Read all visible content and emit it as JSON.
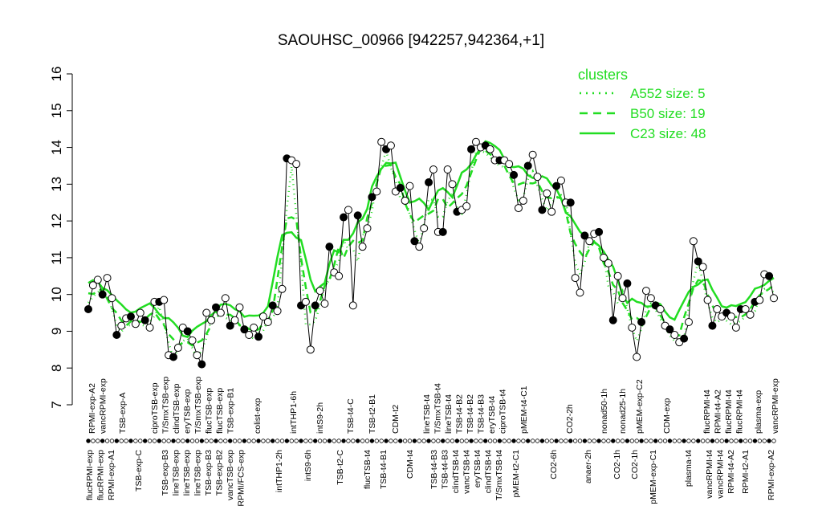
{
  "chart_data": {
    "type": "line",
    "title": "SAOUHSC_00966 [942257,942364,+1]",
    "xlabel": "",
    "ylabel": "",
    "ylim": [
      7,
      16
    ],
    "yticks": [
      7,
      8,
      9,
      10,
      11,
      12,
      13,
      14,
      15,
      16
    ],
    "grid": false,
    "legend": {
      "title": "clusters",
      "placement": "top-right",
      "entries": [
        {
          "label": "A552 size: 5",
          "style": "dotted"
        },
        {
          "label": "B50 size: 19",
          "style": "dashed"
        },
        {
          "label": "C23 size: 48",
          "style": "solid"
        }
      ]
    },
    "colors": {
      "clusters": "#22dd22",
      "samples": "#000000"
    },
    "sample_values": [
      9.6,
      10.25,
      10.4,
      10.0,
      10.45,
      9.9,
      8.9,
      9.15,
      9.35,
      9.4,
      9.2,
      9.5,
      9.3,
      9.1,
      9.8,
      9.8,
      9.85,
      8.35,
      8.3,
      8.55,
      9.1,
      9.0,
      8.75,
      8.35,
      8.1,
      9.5,
      9.3,
      9.65,
      9.5,
      9.9,
      9.15,
      9.3,
      9.65,
      9.05,
      8.9,
      9.1,
      8.85,
      9.4,
      9.25,
      9.7,
      9.55,
      10.15,
      13.7,
      13.65,
      13.55,
      9.7,
      9.8,
      8.5,
      9.7,
      10.1,
      9.75,
      11.3,
      10.6,
      10.5,
      12.1,
      12.3,
      9.7,
      12.15,
      11.3,
      11.8,
      12.65,
      12.8,
      14.15,
      13.95,
      14.05,
      12.8,
      12.9,
      12.55,
      12.95,
      11.45,
      11.3,
      11.8,
      13.05,
      13.4,
      11.7,
      11.7,
      13.4,
      13.0,
      12.25,
      12.3,
      12.4,
      13.95,
      14.15,
      14.0,
      14.05,
      13.95,
      13.65,
      13.65,
      13.65,
      13.55,
      13.25,
      12.35,
      12.55,
      13.5,
      13.8,
      13.2,
      12.3,
      12.75,
      12.25,
      12.95,
      13.1,
      12.5,
      12.5,
      10.45,
      10.05,
      11.6,
      11.45,
      11.65,
      11.7,
      11.0,
      10.85,
      9.3,
      10.5,
      9.9,
      10.3,
      9.1,
      8.3,
      9.25,
      10.1,
      9.9,
      9.7,
      9.6,
      9.15,
      9.05,
      8.9,
      8.7,
      8.8,
      9.25,
      11.45,
      10.9,
      10.75,
      9.85,
      9.15,
      9.6,
      9.4,
      9.5,
      9.4,
      9.1,
      9.6,
      9.6,
      9.45,
      9.8,
      9.85,
      10.55,
      10.5,
      9.9
    ],
    "upper_tick_labels": [
      "RPMI-exp-A2",
      "vancRPMI-exp",
      "TSB-exp-A",
      "ciproTSB-exp",
      "T/SmxTSB-exp",
      "clindTSB-exp",
      "eryTSB-exp",
      "T/SmxTSB-exp",
      "flucTSB-exp",
      "flucTSB-exp",
      "TSB-exp-B1",
      "colist-exp",
      "intTHP1-6h",
      "intS9-2h",
      "TSB-t4-C",
      "TSB-t2-B1",
      "CDM-t2",
      "lineTSB-t4",
      "T/SmxTSB-t4",
      "lineTSB-t4",
      "TSB-t4-B2",
      "TSB-t4-B2",
      "TSB-t4-B3",
      "eryTSB-t4",
      "ciproTSB-t4",
      "pMEM-t4-C1",
      "CO2-2h",
      "nonad50-1h",
      "nonad25-1h",
      "pMEM-exp-C2",
      "CDM-exp",
      "flucRPMI-t4",
      "RPMI-t4-A2",
      "flucRPMI-t4",
      "flucRPMI-t4",
      "plasma-exp",
      "vancRPMI-exp"
    ],
    "lower_tick_labels": [
      "flucRPMI-exp",
      "flucRPMI-exp",
      "RPMI-exp-A1",
      "TSB-exp-C",
      "TSB-exp-B3",
      "lineTSB-exp",
      "lineTSB-exp",
      "lineTSB-exp",
      "TSB-exp-B3",
      "TSB-exp-B2",
      "vancTSB-exp",
      "RPMI/FCS-exp",
      "intTHP1-2h",
      "intS9-6h",
      "TSB-t2-C",
      "flucTSB-t4",
      "TSB-t4-B1",
      "CDM-t4",
      "TSB-t4-B3",
      "TSB-t4-B3",
      "clindTSB-t4",
      "vancTSB-t4",
      "eryTSB-t4",
      "clindTSB-t4",
      "T/SmxTSB-t4",
      "pMEM-t2-C1",
      "CO2-6h",
      "anaer-2h",
      "CO2-1h",
      "CO2-1h",
      "pMEM-exp-C1",
      "plasma-t4",
      "vancRPMI-t4",
      "vancRPMI-t4",
      "RPMI-t4-A2",
      "RPMI-t2-A1",
      "RPMI-exp-A2"
    ]
  }
}
